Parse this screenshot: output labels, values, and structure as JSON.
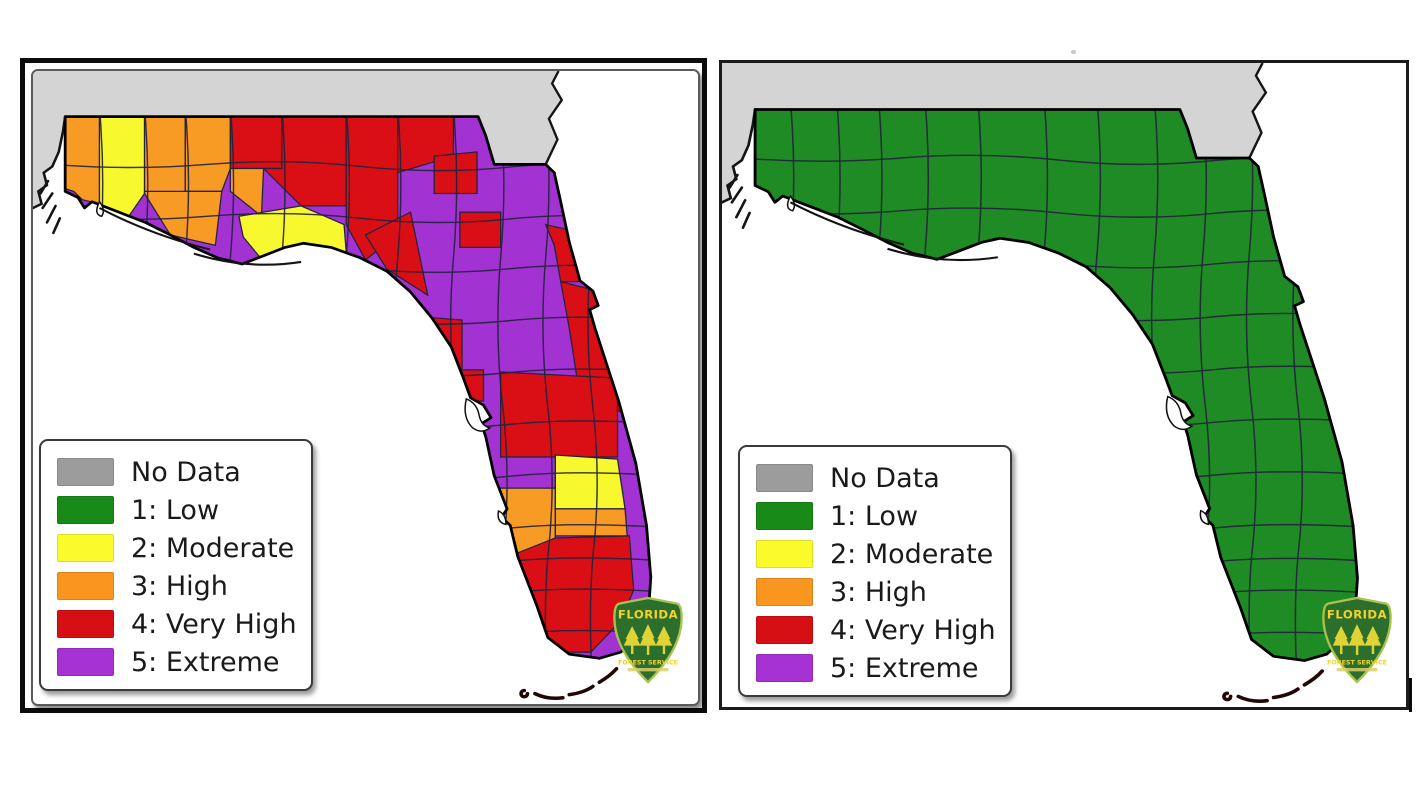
{
  "page": {
    "background": "#ffffff"
  },
  "legend": {
    "items": [
      {
        "label": "No Data",
        "color": "#9c9c9c",
        "level": 0
      },
      {
        "label": "1: Low",
        "color": "#178a17",
        "level": 1
      },
      {
        "label": "2: Moderate",
        "color": "#fbfb2b",
        "level": 2
      },
      {
        "label": "3: High",
        "color": "#f8961f",
        "level": 3
      },
      {
        "label": "4: Very High",
        "color": "#d50f13",
        "level": 4
      },
      {
        "label": "5: Extreme",
        "color": "#a632d3",
        "level": 5
      }
    ]
  },
  "logo": {
    "title": "FLORIDA",
    "subtitle": "FOREST SERVICE"
  },
  "map_data": {
    "type": "choropleth",
    "region": "Florida counties - fire danger index",
    "no_data_area": "Georgia / Alabama (No Data)",
    "no_data_color": "#d4d4d4",
    "level_fill": {
      "1": "#1f8b24",
      "2": "#f8f82e",
      "3": "#f89b25",
      "4": "#d90f15",
      "5": "#a233d2"
    },
    "panels": {
      "left": {
        "description": "Fire danger by county, levels 2: Moderate through 5: Extreme",
        "base_level": 5,
        "cells": [
          {
            "id": "c01",
            "level": 3
          },
          {
            "id": "c02",
            "level": 2
          },
          {
            "id": "c03",
            "level": 3
          },
          {
            "id": "c04",
            "level": 3
          },
          {
            "id": "c05",
            "level": 3
          },
          {
            "id": "c06",
            "level": 4
          },
          {
            "id": "c07",
            "level": 3
          },
          {
            "id": "c09",
            "level": 4
          },
          {
            "id": "c08",
            "level": 2
          },
          {
            "id": "c10",
            "level": 4
          },
          {
            "id": "c11",
            "level": 4
          },
          {
            "id": "c12",
            "level": 4
          },
          {
            "id": "c14",
            "level": 4
          },
          {
            "id": "c17",
            "level": 4
          },
          {
            "id": "c18",
            "level": 4
          },
          {
            "id": "c19",
            "level": 4
          },
          {
            "id": "c20",
            "level": 4
          },
          {
            "id": "c21",
            "level": 4
          },
          {
            "id": "c23",
            "level": 4
          },
          {
            "id": "c25",
            "level": 3
          },
          {
            "id": "c26",
            "level": 3
          },
          {
            "id": "c29",
            "level": 2
          },
          {
            "id": "c30",
            "level": 3
          },
          {
            "id": "c31",
            "level": 4
          }
        ]
      },
      "right": {
        "description": "All counties at level 1: Low",
        "all_level": 1
      }
    }
  }
}
